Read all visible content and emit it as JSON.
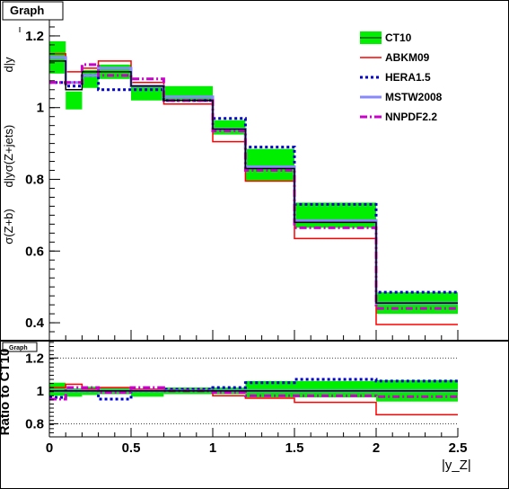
{
  "chart_data": [
    {
      "type": "line",
      "title": "Graph",
      "xlabel": "|y_Z|",
      "ylabel": "σ(Z+b) dσ/d|y_Z| / σ(Z+jets) dσ/d|y_Z|",
      "ylabel_top": "σ(Z+jets)",
      "ylabel_bottom": "σ(Z+b)",
      "ylabel_frac": "d|y",
      "ylabel_frac_sub": "Z",
      "xlim": [
        0,
        2.5
      ],
      "ylim": [
        0.35,
        1.25
      ],
      "x_ticks": [
        "0",
        "0.5",
        "1",
        "1.5",
        "2",
        "2.5"
      ],
      "y_ticks": [
        "0.4",
        "0.6",
        "0.8",
        "1",
        "1.2"
      ],
      "bin_edges": [
        0,
        0.1,
        0.2,
        0.3,
        0.5,
        0.7,
        1.0,
        1.2,
        1.5,
        2.0,
        2.5
      ],
      "series": [
        {
          "name": "CT10",
          "style": "band",
          "color": "#00ee00",
          "values": [
            1.14,
            1.02,
            1.08,
            1.1,
            1.04,
            1.04,
            0.945,
            0.84,
            0.7,
            0.455
          ],
          "errors": [
            0.045,
            0.025,
            0.025,
            0.02,
            0.02,
            0.02,
            0.02,
            0.045,
            0.035,
            0.03
          ]
        },
        {
          "name": "ABKM09",
          "style": "solid",
          "color": "#ff0000",
          "values": [
            1.15,
            1.1,
            1.11,
            1.13,
            1.07,
            1.01,
            0.905,
            0.795,
            0.635,
            0.395
          ]
        },
        {
          "name": "HERA1.5",
          "style": "dotted",
          "color": "#0000cc",
          "values": [
            1.07,
            1.06,
            1.09,
            1.05,
            1.05,
            1.02,
            0.97,
            0.89,
            0.73,
            0.485
          ]
        },
        {
          "name": "MSTW2008",
          "style": "solid-wide",
          "color": "#8888ff",
          "values": [
            1.14,
            1.07,
            1.09,
            1.11,
            1.06,
            1.03,
            0.94,
            0.835,
            0.685,
            0.455
          ]
        },
        {
          "name": "NNPDF2.2",
          "style": "dashdot",
          "color": "#cc00cc",
          "values": [
            1.07,
            1.07,
            1.12,
            1.09,
            1.08,
            1.02,
            0.935,
            0.825,
            0.665,
            0.44
          ]
        },
        {
          "name": "",
          "style": "central",
          "color": "#000000",
          "values": [
            1.13,
            1.05,
            1.1,
            1.1,
            1.06,
            1.02,
            0.94,
            0.83,
            0.68,
            0.455
          ]
        }
      ],
      "legend_position": "top-right",
      "grid": false
    },
    {
      "type": "line",
      "title": "Graph",
      "xlabel": "|y_Z|",
      "ylabel": "Ratio to CT10",
      "xlim": [
        0,
        2.5
      ],
      "ylim": [
        0.72,
        1.3
      ],
      "x_ticks": [
        "0",
        "0.5",
        "1",
        "1.5",
        "2",
        "2.5"
      ],
      "y_ticks": [
        "0.8",
        "1",
        "1.2"
      ],
      "dotted_lines": [
        0.8,
        1.2
      ],
      "bin_edges": [
        0,
        0.1,
        0.2,
        0.3,
        0.5,
        0.7,
        1.0,
        1.2,
        1.5,
        2.0,
        2.5
      ],
      "series": [
        {
          "name": "CT10",
          "style": "band",
          "color": "#00ee00",
          "values": [
            1.01,
            0.99,
            1.0,
            1.0,
            0.985,
            1.0,
            1.0,
            1.01,
            1.01,
            1.0
          ],
          "errors": [
            0.04,
            0.025,
            0.025,
            0.02,
            0.02,
            0.02,
            0.02,
            0.05,
            0.05,
            0.065
          ]
        },
        {
          "name": "ABKM09",
          "style": "solid",
          "color": "#ff0000",
          "values": [
            1.02,
            1.04,
            1.01,
            1.02,
            1.01,
            1.0,
            0.97,
            0.955,
            0.93,
            0.855
          ]
        },
        {
          "name": "HERA1.5",
          "style": "dotted",
          "color": "#0000cc",
          "values": [
            0.96,
            1.0,
            1.0,
            0.95,
            1.0,
            1.01,
            1.02,
            1.05,
            1.07,
            1.06
          ]
        },
        {
          "name": "MSTW2008",
          "style": "solid-wide",
          "color": "#8888ff",
          "values": [
            1.0,
            1.0,
            1.0,
            1.0,
            1.0,
            1.0,
            1.0,
            1.0,
            1.0,
            1.0
          ]
        },
        {
          "name": "NNPDF2.2",
          "style": "dashdot",
          "color": "#cc00cc",
          "values": [
            0.95,
            1.02,
            1.02,
            0.99,
            1.02,
            1.0,
            0.99,
            0.97,
            0.97,
            0.965
          ]
        },
        {
          "name": "",
          "style": "central",
          "color": "#000000",
          "values": [
            1.0,
            1.0,
            1.0,
            1.0,
            1.0,
            1.0,
            1.0,
            1.0,
            1.0,
            1.0
          ]
        }
      ],
      "grid": false
    }
  ]
}
